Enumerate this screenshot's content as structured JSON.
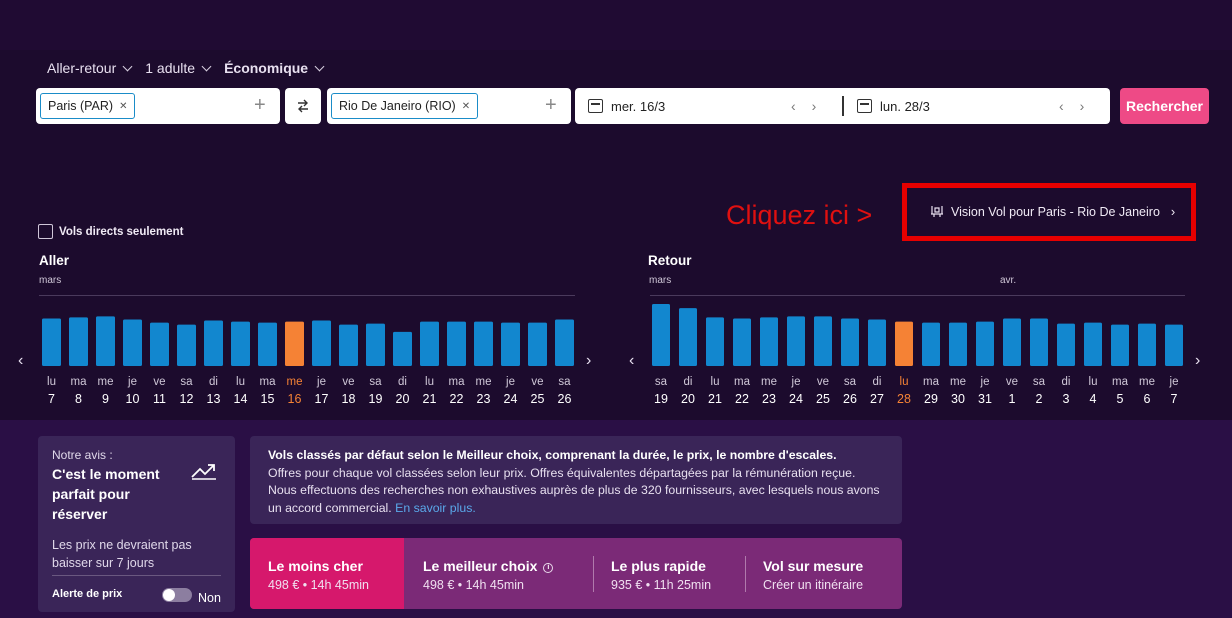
{
  "options": {
    "trip_type": "Aller-retour",
    "passengers": "1 adulte",
    "cabin": "Économique"
  },
  "search": {
    "origin": "Paris (PAR)",
    "destination": "Rio De Janeiro (RIO)",
    "depart_date": "mer. 16/3",
    "return_date": "lun. 28/3",
    "search_label": "Rechercher"
  },
  "annotation": {
    "callout": "Cliquez ici >",
    "vision_label": "Vision Vol pour Paris - Rio De Janeiro"
  },
  "filters": {
    "direct_only": "Vols directs seulement"
  },
  "colors": {
    "bar": "#1287cf",
    "selected_bar": "#f58235",
    "accent": "#ee4a86"
  },
  "chart_data": [
    {
      "type": "bar",
      "title": "Aller",
      "months": [
        {
          "label": "mars",
          "at_index": 0
        }
      ],
      "days": [
        "lu",
        "ma",
        "me",
        "je",
        "ve",
        "sa",
        "di",
        "lu",
        "ma",
        "me",
        "je",
        "ve",
        "sa",
        "di",
        "lu",
        "ma",
        "me",
        "je",
        "ve",
        "sa"
      ],
      "categories": [
        "7",
        "8",
        "9",
        "10",
        "11",
        "12",
        "13",
        "14",
        "15",
        "16",
        "17",
        "18",
        "19",
        "20",
        "21",
        "22",
        "23",
        "24",
        "25",
        "26"
      ],
      "values": [
        46,
        47,
        48,
        45,
        42,
        40,
        44,
        43,
        42,
        43,
        44,
        40,
        41,
        33,
        43,
        43,
        43,
        42,
        42,
        45
      ],
      "selected_index": 9
    },
    {
      "type": "bar",
      "title": "Retour",
      "months": [
        {
          "label": "mars",
          "at_index": 0
        },
        {
          "label": "avr.",
          "at_index": 13
        }
      ],
      "days": [
        "sa",
        "di",
        "lu",
        "ma",
        "me",
        "je",
        "ve",
        "sa",
        "di",
        "lu",
        "ma",
        "me",
        "je",
        "ve",
        "sa",
        "di",
        "lu",
        "ma",
        "me",
        "je"
      ],
      "categories": [
        "19",
        "20",
        "21",
        "22",
        "23",
        "24",
        "25",
        "26",
        "27",
        "28",
        "29",
        "30",
        "31",
        "1",
        "2",
        "3",
        "4",
        "5",
        "6",
        "7"
      ],
      "values": [
        60,
        56,
        47,
        46,
        47,
        48,
        48,
        46,
        45,
        43,
        42,
        42,
        43,
        46,
        46,
        41,
        42,
        40,
        41,
        40
      ],
      "selected_index": 9
    }
  ],
  "avis": {
    "label": "Notre avis :",
    "headline": "C'est le moment parfait pour réserver",
    "detail": "Les prix ne devraient pas baisser sur 7 jours",
    "alert_label": "Alerte de prix",
    "toggle_state": "Non"
  },
  "info": {
    "bold": "Vols classés par défaut selon le Meilleur choix, comprenant la durée, le prix, le nombre d'escales.",
    "text": "Offres pour chaque vol classées selon leur prix. Offres équivalentes départagées par la rémunération reçue. Nous effectuons des recherches non exhaustives auprès de plus de 320 fournisseurs, avec lesquels nous avons un accord commercial.",
    "link": "En savoir plus."
  },
  "sort_tabs": [
    {
      "title": "Le moins cher",
      "sub": "498 € • 14h 45min"
    },
    {
      "title": "Le meilleur choix",
      "sub": "498 € • 14h 45min"
    },
    {
      "title": "Le plus rapide",
      "sub": "935 € • 11h 25min"
    },
    {
      "title": "Vol sur mesure",
      "sub": "Créer un itinéraire"
    }
  ]
}
